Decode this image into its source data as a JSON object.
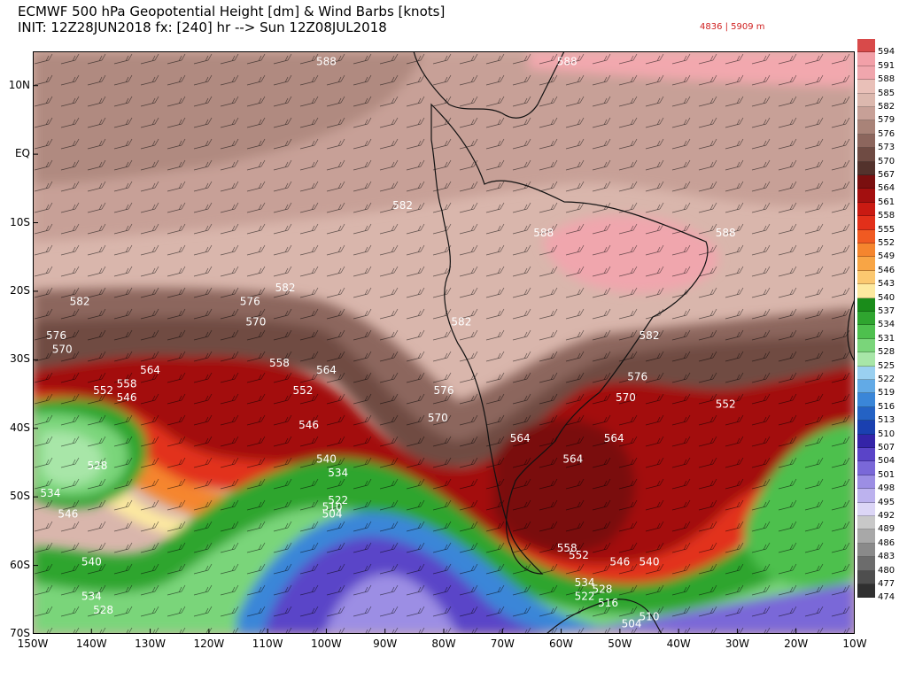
{
  "header": {
    "line1": "ECMWF 500 hPa Geopotential Height [dm] & Wind Barbs [knots]",
    "line2": "INIT: 12Z28JUN2018 fx: [240] hr --> Sun 12Z08JUL2018",
    "range": "4836 | 5909 m"
  },
  "map": {
    "lon_min": -150,
    "lon_max": -10,
    "lat_min": -70,
    "lat_max": 15,
    "lat_labels": [
      {
        "lat": 10,
        "text": "10N"
      },
      {
        "lat": 0,
        "text": "EQ"
      },
      {
        "lat": -10,
        "text": "10S"
      },
      {
        "lat": -20,
        "text": "20S"
      },
      {
        "lat": -30,
        "text": "30S"
      },
      {
        "lat": -40,
        "text": "40S"
      },
      {
        "lat": -50,
        "text": "50S"
      },
      {
        "lat": -60,
        "text": "60S"
      },
      {
        "lat": -70,
        "text": "70S"
      }
    ],
    "lon_labels": [
      {
        "lon": -150,
        "text": "150W"
      },
      {
        "lon": -140,
        "text": "140W"
      },
      {
        "lon": -130,
        "text": "130W"
      },
      {
        "lon": -120,
        "text": "120W"
      },
      {
        "lon": -110,
        "text": "110W"
      },
      {
        "lon": -100,
        "text": "100W"
      },
      {
        "lon": -90,
        "text": "90W"
      },
      {
        "lon": -80,
        "text": "80W"
      },
      {
        "lon": -70,
        "text": "70W"
      },
      {
        "lon": -60,
        "text": "60W"
      },
      {
        "lon": -50,
        "text": "50W"
      },
      {
        "lon": -40,
        "text": "40W"
      },
      {
        "lon": -30,
        "text": "30W"
      },
      {
        "lon": -20,
        "text": "20W"
      },
      {
        "lon": -10,
        "text": "10W"
      }
    ],
    "contour_labels": [
      {
        "lon": -100,
        "lat": 13,
        "text": "588"
      },
      {
        "lon": -59,
        "lat": 13,
        "text": "588"
      },
      {
        "lon": -87,
        "lat": -8,
        "text": "582"
      },
      {
        "lon": -63,
        "lat": -12,
        "text": "588"
      },
      {
        "lon": -32,
        "lat": -12,
        "text": "588"
      },
      {
        "lon": -107,
        "lat": -20,
        "text": "582"
      },
      {
        "lon": -142,
        "lat": -22,
        "text": "582"
      },
      {
        "lon": -113,
        "lat": -22,
        "text": "576"
      },
      {
        "lon": -146,
        "lat": -27,
        "text": "576"
      },
      {
        "lon": -112,
        "lat": -25,
        "text": "570"
      },
      {
        "lon": -145,
        "lat": -29,
        "text": "570"
      },
      {
        "lon": -77,
        "lat": -25,
        "text": "582"
      },
      {
        "lon": -45,
        "lat": -27,
        "text": "582"
      },
      {
        "lon": -108,
        "lat": -31,
        "text": "558"
      },
      {
        "lon": -130,
        "lat": -32,
        "text": "564"
      },
      {
        "lon": -100,
        "lat": -32,
        "text": "564"
      },
      {
        "lon": -134,
        "lat": -34,
        "text": "558"
      },
      {
        "lon": -104,
        "lat": -35,
        "text": "552"
      },
      {
        "lon": -138,
        "lat": -35,
        "text": "552"
      },
      {
        "lon": -134,
        "lat": -36,
        "text": "546"
      },
      {
        "lon": -47,
        "lat": -33,
        "text": "576"
      },
      {
        "lon": -49,
        "lat": -36,
        "text": "570"
      },
      {
        "lon": -80,
        "lat": -35,
        "text": "576"
      },
      {
        "lon": -81,
        "lat": -39,
        "text": "570"
      },
      {
        "lon": -32,
        "lat": -37,
        "text": "552"
      },
      {
        "lon": -103,
        "lat": -40,
        "text": "546"
      },
      {
        "lon": -139,
        "lat": -46,
        "text": "528"
      },
      {
        "lon": -67,
        "lat": -42,
        "text": "564"
      },
      {
        "lon": -51,
        "lat": -42,
        "text": "564"
      },
      {
        "lon": -58,
        "lat": -45,
        "text": "564"
      },
      {
        "lon": -100,
        "lat": -45,
        "text": "540"
      },
      {
        "lon": -147,
        "lat": -50,
        "text": "534"
      },
      {
        "lon": -98,
        "lat": -47,
        "text": "534"
      },
      {
        "lon": -98,
        "lat": -51,
        "text": "522"
      },
      {
        "lon": -99,
        "lat": -52,
        "text": "510"
      },
      {
        "lon": -99,
        "lat": -53,
        "text": "504"
      },
      {
        "lon": -144,
        "lat": -53,
        "text": "546"
      },
      {
        "lon": -140,
        "lat": -60,
        "text": "540"
      },
      {
        "lon": -59,
        "lat": -58,
        "text": "558"
      },
      {
        "lon": -57,
        "lat": -59,
        "text": "552"
      },
      {
        "lon": -50,
        "lat": -60,
        "text": "546"
      },
      {
        "lon": -45,
        "lat": -60,
        "text": "540"
      },
      {
        "lon": -56,
        "lat": -63,
        "text": "534"
      },
      {
        "lon": -53,
        "lat": -64,
        "text": "528"
      },
      {
        "lon": -56,
        "lat": -65,
        "text": "522"
      },
      {
        "lon": -52,
        "lat": -66,
        "text": "516"
      },
      {
        "lon": -140,
        "lat": -65,
        "text": "534"
      },
      {
        "lon": -138,
        "lat": -67,
        "text": "528"
      },
      {
        "lon": -45,
        "lat": -68,
        "text": "510"
      },
      {
        "lon": -48,
        "lat": -69,
        "text": "504"
      }
    ]
  },
  "colorbar": {
    "levels": [
      {
        "value": "594",
        "color": "#d84a4a"
      },
      {
        "value": "591",
        "color": "#f2a0a8"
      },
      {
        "value": "588",
        "color": "#f0a6ad"
      },
      {
        "value": "585",
        "color": "#e9c0b8"
      },
      {
        "value": "582",
        "color": "#dcb8ae"
      },
      {
        "value": "579",
        "color": "#c7a097"
      },
      {
        "value": "576",
        "color": "#a98378"
      },
      {
        "value": "573",
        "color": "#8c665d"
      },
      {
        "value": "570",
        "color": "#6f4b43"
      },
      {
        "value": "567",
        "color": "#53322c"
      },
      {
        "value": "564",
        "color": "#7a0f0f"
      },
      {
        "value": "561",
        "color": "#a30f0f"
      },
      {
        "value": "558",
        "color": "#c91a12"
      },
      {
        "value": "555",
        "color": "#e2301a"
      },
      {
        "value": "552",
        "color": "#f05a22"
      },
      {
        "value": "549",
        "color": "#f5852e"
      },
      {
        "value": "546",
        "color": "#f8a545"
      },
      {
        "value": "543",
        "color": "#fbc870"
      },
      {
        "value": "540",
        "color": "#fde9a0"
      },
      {
        "value": "537",
        "color": "#1a8c1a"
      },
      {
        "value": "534",
        "color": "#2fa52f"
      },
      {
        "value": "531",
        "color": "#4ec04e"
      },
      {
        "value": "528",
        "color": "#7ad57a"
      },
      {
        "value": "525",
        "color": "#a8e6a8"
      },
      {
        "value": "522",
        "color": "#9ad0f0"
      },
      {
        "value": "519",
        "color": "#62aae6"
      },
      {
        "value": "516",
        "color": "#3a86d8"
      },
      {
        "value": "513",
        "color": "#2462c4"
      },
      {
        "value": "510",
        "color": "#1a40b0"
      },
      {
        "value": "507",
        "color": "#3424a8"
      },
      {
        "value": "504",
        "color": "#5a44c8"
      },
      {
        "value": "501",
        "color": "#7a68d8"
      },
      {
        "value": "498",
        "color": "#9c8ee4"
      },
      {
        "value": "495",
        "color": "#bcb2ee"
      },
      {
        "value": "492",
        "color": "#dcd6f6"
      },
      {
        "value": "489",
        "color": "#c8c8c8"
      },
      {
        "value": "486",
        "color": "#a8a8a8"
      },
      {
        "value": "483",
        "color": "#8a8a8a"
      },
      {
        "value": "480",
        "color": "#6c6c6c"
      },
      {
        "value": "477",
        "color": "#4e4e4e"
      },
      {
        "value": "474",
        "color": "#303030"
      }
    ]
  }
}
